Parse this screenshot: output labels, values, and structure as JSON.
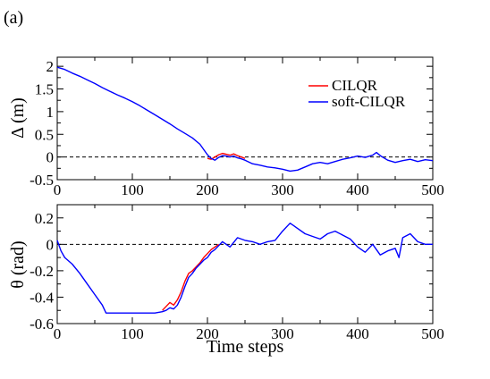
{
  "panel_label": "(a)",
  "chart_data": [
    {
      "type": "line",
      "title": "",
      "xlabel": "",
      "ylabel": "Δ (m)",
      "xlim": [
        0,
        500
      ],
      "ylim": [
        -0.5,
        2.2
      ],
      "xticks": [
        0,
        100,
        200,
        300,
        400,
        500
      ],
      "yticks": [
        -0.5,
        0,
        0.5,
        1,
        1.5,
        2
      ],
      "ytick_labels": [
        "-0.5",
        "0",
        "0.5",
        "1",
        "1.5",
        "2"
      ],
      "reference_line": {
        "y": 0,
        "style": "dashed",
        "color": "#000000"
      },
      "legend": {
        "placement": "top-right",
        "entries": [
          "CILQR",
          "soft-CILQR"
        ]
      },
      "series": [
        {
          "name": "CILQR",
          "color": "#ff0000",
          "x": [
            200,
            205,
            210,
            215,
            220,
            225,
            230,
            235,
            240,
            245,
            250
          ],
          "y": [
            -0.03,
            -0.05,
            0.0,
            0.05,
            0.08,
            0.06,
            0.04,
            0.07,
            0.03,
            0.0,
            -0.03
          ]
        },
        {
          "name": "soft-CILQR",
          "color": "#0000ff",
          "x": [
            0,
            10,
            20,
            30,
            40,
            50,
            60,
            70,
            80,
            90,
            100,
            110,
            120,
            130,
            140,
            150,
            160,
            170,
            180,
            190,
            200,
            205,
            210,
            215,
            220,
            225,
            230,
            235,
            240,
            245,
            250,
            260,
            270,
            280,
            290,
            300,
            310,
            320,
            330,
            340,
            350,
            360,
            370,
            380,
            390,
            400,
            410,
            420,
            425,
            430,
            440,
            450,
            460,
            470,
            480,
            490,
            500
          ],
          "y": [
            1.98,
            1.93,
            1.85,
            1.78,
            1.7,
            1.62,
            1.53,
            1.45,
            1.37,
            1.3,
            1.22,
            1.13,
            1.03,
            0.93,
            0.83,
            0.73,
            0.62,
            0.52,
            0.42,
            0.28,
            0.05,
            -0.03,
            -0.07,
            -0.01,
            0.03,
            0.02,
            0.0,
            0.02,
            -0.02,
            -0.04,
            -0.07,
            -0.15,
            -0.18,
            -0.22,
            -0.24,
            -0.27,
            -0.31,
            -0.29,
            -0.22,
            -0.15,
            -0.12,
            -0.15,
            -0.1,
            -0.05,
            -0.02,
            0.02,
            -0.01,
            0.04,
            0.1,
            0.03,
            -0.07,
            -0.12,
            -0.08,
            -0.05,
            -0.1,
            -0.06,
            -0.08
          ]
        }
      ]
    },
    {
      "type": "line",
      "title": "",
      "xlabel": "Time steps",
      "ylabel": "θ (rad)",
      "xlim": [
        0,
        500
      ],
      "ylim": [
        -0.6,
        0.3
      ],
      "xticks": [
        0,
        100,
        200,
        300,
        400,
        500
      ],
      "yticks": [
        -0.6,
        -0.4,
        -0.2,
        0,
        0.2
      ],
      "ytick_labels": [
        "-0.6",
        "-0.4",
        "-0.2",
        "0",
        "0.2"
      ],
      "reference_line": {
        "y": 0,
        "style": "dashed",
        "color": "#000000"
      },
      "series": [
        {
          "name": "CILQR",
          "color": "#ff0000",
          "x": [
            140,
            145,
            150,
            155,
            160,
            165,
            170,
            175,
            180,
            185,
            190,
            195,
            200,
            205,
            210,
            215
          ],
          "y": [
            -0.5,
            -0.47,
            -0.44,
            -0.46,
            -0.42,
            -0.36,
            -0.28,
            -0.22,
            -0.2,
            -0.17,
            -0.14,
            -0.1,
            -0.07,
            -0.04,
            -0.02,
            0.0
          ]
        },
        {
          "name": "soft-CILQR",
          "color": "#0000ff",
          "x": [
            0,
            5,
            10,
            20,
            30,
            40,
            50,
            60,
            65,
            70,
            80,
            90,
            100,
            110,
            120,
            130,
            140,
            145,
            150,
            155,
            160,
            165,
            170,
            175,
            180,
            185,
            190,
            195,
            200,
            205,
            210,
            215,
            220,
            230,
            240,
            250,
            260,
            270,
            280,
            290,
            300,
            310,
            315,
            320,
            330,
            340,
            350,
            360,
            370,
            380,
            390,
            400,
            410,
            420,
            430,
            440,
            450,
            455,
            460,
            470,
            480,
            490,
            500
          ],
          "y": [
            0.03,
            -0.05,
            -0.1,
            -0.15,
            -0.22,
            -0.3,
            -0.38,
            -0.46,
            -0.52,
            -0.52,
            -0.52,
            -0.52,
            -0.52,
            -0.52,
            -0.52,
            -0.52,
            -0.51,
            -0.5,
            -0.48,
            -0.49,
            -0.46,
            -0.4,
            -0.32,
            -0.25,
            -0.22,
            -0.18,
            -0.15,
            -0.12,
            -0.1,
            -0.06,
            -0.04,
            -0.01,
            0.02,
            -0.02,
            0.05,
            0.03,
            0.02,
            0.0,
            0.02,
            0.03,
            0.1,
            0.16,
            0.14,
            0.12,
            0.08,
            0.06,
            0.04,
            0.08,
            0.1,
            0.07,
            0.04,
            -0.02,
            -0.06,
            0.0,
            -0.08,
            -0.05,
            -0.03,
            -0.1,
            0.05,
            0.08,
            0.02,
            0.0,
            0.0
          ]
        }
      ]
    }
  ]
}
